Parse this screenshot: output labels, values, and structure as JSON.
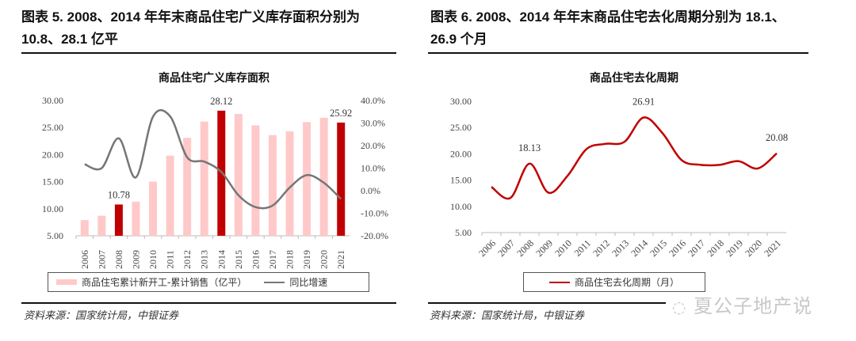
{
  "left": {
    "heading_line1": "图表 5. 2008、2014 年年末商品住宅广义库存面积分别为",
    "heading_line2": "10.8、28.1 亿平",
    "source": "资料来源：国家统计局，中银证券",
    "legend": {
      "bar": "商品住宅累计新开工-累计销售（亿平）",
      "line": "同比增速"
    }
  },
  "right": {
    "heading_line1": "图表 6. 2008、2014 年年末商品住宅去化周期分别为 18.1、",
    "heading_line2": "26.9 个月",
    "source": "资料来源：国家统计局，中银证券",
    "legend": {
      "line": "商品住宅去化周期（月）"
    }
  },
  "watermark": "夏公子地产说",
  "colors": {
    "bar_light": "#ffc9c9",
    "bar_highlight": "#c00000",
    "growth_line": "#767676",
    "cycle_line": "#c00000"
  },
  "chart_data": [
    {
      "type": "bar",
      "title": "商品住宅广义库存面积",
      "categories": [
        "2006",
        "2007",
        "2008",
        "2009",
        "2010",
        "2011",
        "2012",
        "2013",
        "2014",
        "2015",
        "2016",
        "2017",
        "2018",
        "2019",
        "2020",
        "2021"
      ],
      "series": [
        {
          "name": "商品住宅累计新开工-累计销售（亿平）",
          "type": "bar",
          "axis": "left",
          "values": [
            7.9,
            8.7,
            10.78,
            11.3,
            15.0,
            19.8,
            23.1,
            26.1,
            28.12,
            27.5,
            25.4,
            23.6,
            24.3,
            26.0,
            26.8,
            25.92
          ],
          "highlight": [
            "2008",
            "2014",
            "2021"
          ]
        },
        {
          "name": "同比增速",
          "type": "line",
          "axis": "right",
          "unit": "%",
          "values": [
            11.7,
            10.0,
            23.2,
            5.9,
            32.8,
            33.0,
            14.8,
            12.9,
            8.3,
            -2.0,
            -7.3,
            -6.6,
            1.4,
            6.9,
            3.5,
            -3.7
          ]
        }
      ],
      "data_labels": [
        {
          "category": "2008",
          "text": "10.78"
        },
        {
          "category": "2014",
          "text": "28.12"
        },
        {
          "category": "2021",
          "text": "25.92"
        }
      ],
      "ylim_left": [
        5,
        30
      ],
      "yticks_left": [
        "30.00",
        "25.00",
        "20.00",
        "15.00",
        "10.00",
        "5.00"
      ],
      "ylim_right": [
        -20,
        40
      ],
      "yticks_right": [
        "40.0%",
        "30.0%",
        "20.0%",
        "10.0%",
        "0.0%",
        "-10.0%",
        "-20.0%"
      ],
      "grid": false,
      "legend_position": "bottom"
    },
    {
      "type": "line",
      "title": "商品住宅去化周期",
      "categories": [
        "2006",
        "2007",
        "2008",
        "2009",
        "2010",
        "2011",
        "2012",
        "2013",
        "2014",
        "2015",
        "2016",
        "2017",
        "2018",
        "2019",
        "2020",
        "2021"
      ],
      "series": [
        {
          "name": "商品住宅去化周期（月）",
          "values": [
            13.7,
            11.6,
            18.13,
            12.6,
            15.8,
            20.9,
            21.9,
            22.3,
            26.91,
            23.9,
            18.8,
            17.9,
            17.9,
            18.6,
            17.2,
            20.08
          ]
        }
      ],
      "data_labels": [
        {
          "category": "2008",
          "text": "18.13"
        },
        {
          "category": "2014",
          "text": "26.91"
        },
        {
          "category": "2021",
          "text": "20.08"
        }
      ],
      "ylim": [
        5,
        30
      ],
      "yticks": [
        "30.00",
        "25.00",
        "20.00",
        "15.00",
        "10.00",
        "5.00"
      ],
      "grid": false,
      "legend_position": "bottom"
    }
  ]
}
